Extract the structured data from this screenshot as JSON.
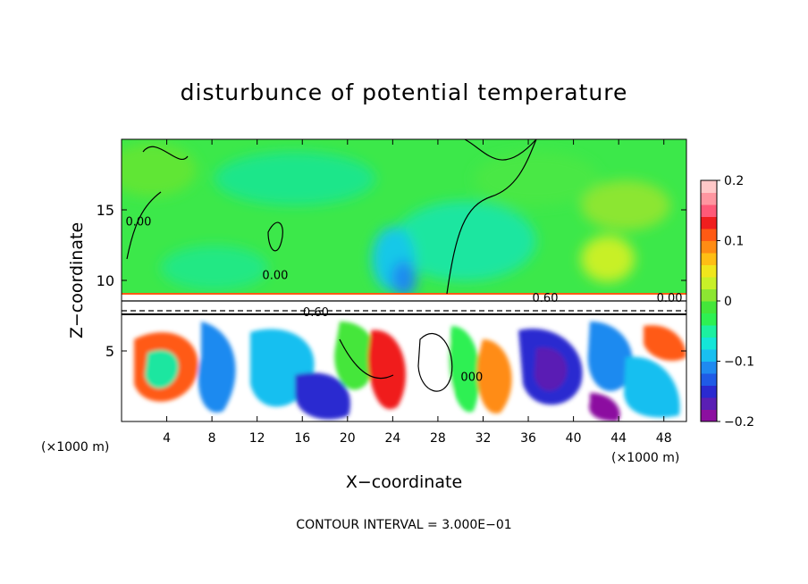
{
  "chart_data": {
    "type": "heatmap",
    "title": "disturbunce of potential temperature",
    "xlabel": "X−coordinate",
    "ylabel": "Z−coordinate",
    "x_unit": "(×1000 m)",
    "x_unit_right": "(×1000 m)",
    "xlim": [
      0,
      50
    ],
    "ylim": [
      0,
      20
    ],
    "x_ticks": [
      4,
      8,
      12,
      16,
      20,
      24,
      28,
      32,
      36,
      40,
      44,
      48
    ],
    "y_ticks": [
      5,
      10,
      15
    ],
    "colorbar": {
      "min": -0.2,
      "max": 0.2,
      "ticks": [
        {
          "value": 0.2,
          "label": "0.2"
        },
        {
          "value": 0.1,
          "label": "0.1"
        },
        {
          "value": 0.0,
          "label": "0"
        },
        {
          "value": -0.1,
          "label": "−0.1"
        },
        {
          "value": -0.2,
          "label": "−0.2"
        }
      ],
      "colors": [
        "#8c0fa0",
        "#5a1fb4",
        "#2a2ad0",
        "#1f5be6",
        "#1f8af0",
        "#19bff0",
        "#14e6d8",
        "#1cf0a0",
        "#2ef052",
        "#44e63a",
        "#8ce632",
        "#c8f028",
        "#f0e61c",
        "#ffbe14",
        "#ff8c14",
        "#ff5a14",
        "#f01e1e",
        "#ff5a78",
        "#ff96a0",
        "#ffc8c8"
      ]
    },
    "contour_labels": [
      {
        "text": "0.00",
        "x": 1.5,
        "z": 14.2
      },
      {
        "text": "0.00",
        "x": 13.6,
        "z": 10.4
      },
      {
        "text": "0.60",
        "x": 17.2,
        "z": 7.8
      },
      {
        "text": "0.60",
        "x": 37.5,
        "z": 8.8
      },
      {
        "text": "0.00",
        "x": 48.5,
        "z": 8.8
      },
      {
        "text": "000",
        "x": 31.0,
        "z": 3.2
      }
    ],
    "annotation": "CONTOUR INTERVAL = 3.000E−01"
  }
}
